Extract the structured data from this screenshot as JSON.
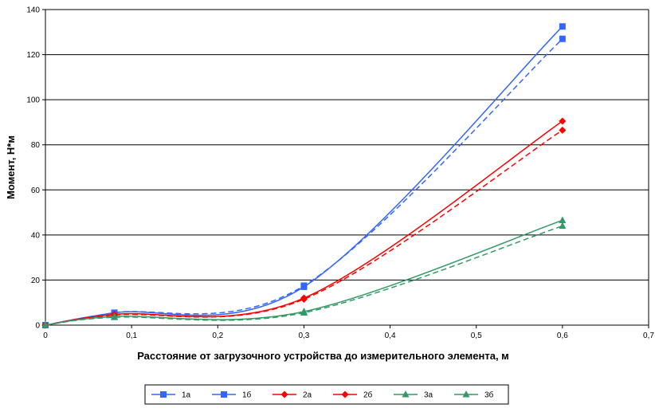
{
  "chart_data": {
    "type": "line",
    "title": "",
    "xlabel": "Расстояние от загрузочного устройства до измерительного элемента, м",
    "ylabel": "Момент, Н*м",
    "xlim": [
      0,
      0.7
    ],
    "ylim": [
      0,
      140
    ],
    "x_ticks": [
      "0",
      "0,1",
      "0,2",
      "0,3",
      "0,4",
      "0,5",
      "0,6",
      "0,7"
    ],
    "y_ticks": [
      "0",
      "20",
      "40",
      "60",
      "80",
      "100",
      "120",
      "140"
    ],
    "grid": "horizontal",
    "legend_position": "bottom",
    "x": [
      0,
      0.08,
      0.3,
      0.6
    ],
    "series": [
      {
        "name": "1а",
        "color": "#3366ff",
        "marker": "square",
        "dashed": true,
        "values": [
          0,
          5.5,
          17.5,
          127
        ]
      },
      {
        "name": "1б",
        "color": "#3366ff",
        "marker": "square",
        "dashed": false,
        "values": [
          0,
          5.5,
          17,
          132.5
        ]
      },
      {
        "name": "2а",
        "color": "#ff0000",
        "marker": "diamond",
        "dashed": true,
        "values": [
          0,
          4.5,
          11.5,
          86.5
        ]
      },
      {
        "name": "2б",
        "color": "#ff0000",
        "marker": "diamond",
        "dashed": false,
        "values": [
          0,
          4.8,
          12,
          90.5
        ]
      },
      {
        "name": "3а",
        "color": "#339966",
        "marker": "triangle",
        "dashed": true,
        "values": [
          0,
          3.5,
          5.5,
          44
        ]
      },
      {
        "name": "3б",
        "color": "#339966",
        "marker": "triangle",
        "dashed": false,
        "values": [
          0,
          3.8,
          6,
          46.5
        ]
      }
    ]
  }
}
